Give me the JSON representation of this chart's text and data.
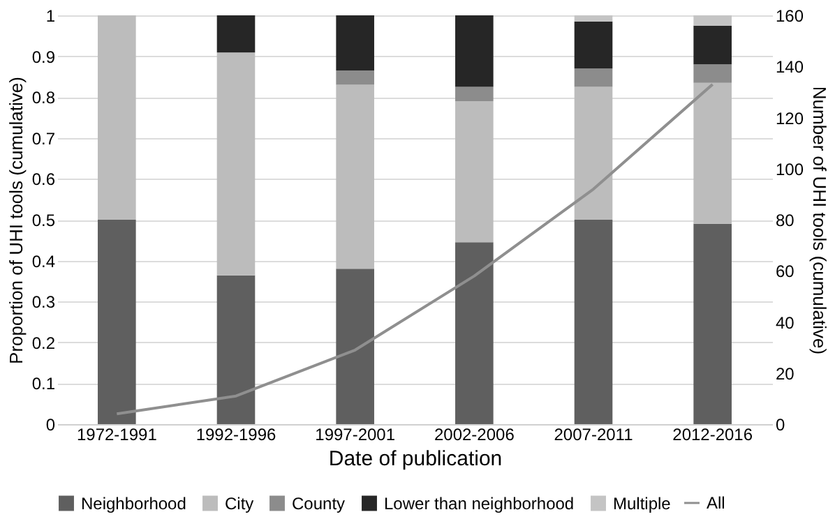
{
  "chart_data": {
    "type": "bar",
    "stacked": true,
    "xlabel": "Date of publication",
    "ylabel": "Proportion of UHI tools (cumulative)",
    "y2label": "Number of UHI tools (cumulative)",
    "categories": [
      "1972-1991",
      "1992-1996",
      "1997-2001",
      "2002-2006",
      "2007-2011",
      "2012-2016"
    ],
    "series": [
      {
        "name": "Neighborhood",
        "color": "#5f5f5f",
        "values": [
          0.5,
          0.364,
          0.38,
          0.445,
          0.5,
          0.49
        ]
      },
      {
        "name": "City",
        "color": "#bcbcbc",
        "values": [
          0.5,
          0.545,
          0.45,
          0.345,
          0.325,
          0.345
        ]
      },
      {
        "name": "County",
        "color": "#8c8c8c",
        "values": [
          0,
          0,
          0.035,
          0.035,
          0.045,
          0.045
        ]
      },
      {
        "name": "Lower than neighborhood",
        "color": "#262626",
        "values": [
          0,
          0.091,
          0.135,
          0.175,
          0.115,
          0.095
        ]
      },
      {
        "name": "Multiple",
        "color": "#c4c4c4",
        "values": [
          0,
          0,
          0,
          0,
          0.015,
          0.025
        ]
      },
      {
        "name": "All",
        "color": "#8f8f8f",
        "type": "line",
        "axis": "y2",
        "marker": "none",
        "values": [
          4,
          11,
          29,
          58,
          92,
          133
        ]
      }
    ],
    "ylim": [
      0,
      1
    ],
    "yticks": [
      0,
      0.1,
      0.2,
      0.3,
      0.4,
      0.5,
      0.6,
      0.7,
      0.8,
      0.9,
      1
    ],
    "y2lim": [
      0,
      160
    ],
    "y2ticks": [
      0,
      20,
      40,
      60,
      80,
      100,
      120,
      140,
      160
    ],
    "grid": "y",
    "legend": "bottom"
  }
}
